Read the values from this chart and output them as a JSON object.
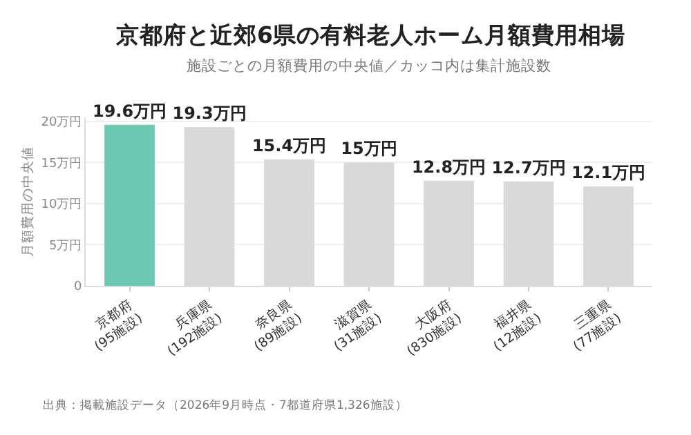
{
  "chart_data": {
    "type": "bar",
    "title": "京都府と近郊6県の有料老人ホーム月額費用相場",
    "subtitle": "施設ごとの月額費用の中央値／カッコ内は集計施設数",
    "ylabel": "月額費用の中央値",
    "categories": [
      "京都府\n(95施設)",
      "兵庫県\n(192施設)",
      "奈良県\n(89施設)",
      "滋賀県\n(31施設)",
      "大阪府\n(830施設)",
      "福井県\n(12施設)",
      "三重県\n(77施設)"
    ],
    "values": [
      19.6,
      19.3,
      15.4,
      15,
      12.8,
      12.7,
      12.1
    ],
    "value_labels": [
      "19.6万円",
      "19.3万円",
      "15.4万円",
      "15万円",
      "12.8万円",
      "12.7万円",
      "12.1万円"
    ],
    "colors": [
      "#6cc9b0",
      "#d9d9d9",
      "#d9d9d9",
      "#d9d9d9",
      "#d9d9d9",
      "#d9d9d9",
      "#d9d9d9"
    ],
    "ylim": [
      0,
      20.5
    ],
    "yticks": [
      0,
      {
        "value": 5,
        "label": "5万円"
      },
      {
        "value": 10,
        "label": "10万円"
      },
      {
        "value": 15,
        "label": "15万円"
      },
      {
        "value": 20,
        "label": "20万円"
      }
    ],
    "grid": "y",
    "legend": false,
    "annotations": [
      "出典：掲載施設データ（2026年9月時点・7都道府県1,326施設）"
    ]
  }
}
